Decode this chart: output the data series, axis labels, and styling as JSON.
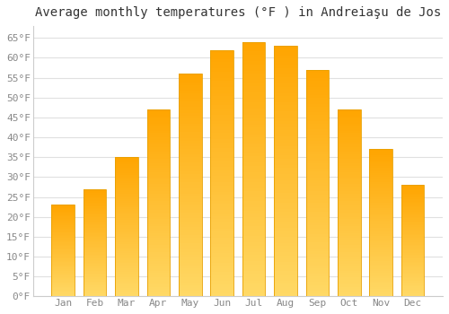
{
  "title": "Average monthly temperatures (°F ) in Andreiaşu de Jos",
  "months": [
    "Jan",
    "Feb",
    "Mar",
    "Apr",
    "May",
    "Jun",
    "Jul",
    "Aug",
    "Sep",
    "Oct",
    "Nov",
    "Dec"
  ],
  "values": [
    23,
    27,
    35,
    47,
    56,
    62,
    64,
    63,
    57,
    47,
    37,
    28
  ],
  "ylim": [
    0,
    68
  ],
  "yticks": [
    0,
    5,
    10,
    15,
    20,
    25,
    30,
    35,
    40,
    45,
    50,
    55,
    60,
    65
  ],
  "ytick_labels": [
    "0°F",
    "5°F",
    "10°F",
    "15°F",
    "20°F",
    "25°F",
    "30°F",
    "35°F",
    "40°F",
    "45°F",
    "50°F",
    "55°F",
    "60°F",
    "65°F"
  ],
  "background_color": "#ffffff",
  "grid_color": "#e0e0e0",
  "title_fontsize": 10,
  "tick_fontsize": 8,
  "bar_color_bottom": "#FFD966",
  "bar_color_top": "#FFA500",
  "bar_edge_color": "#E8A000",
  "bar_width": 0.72
}
